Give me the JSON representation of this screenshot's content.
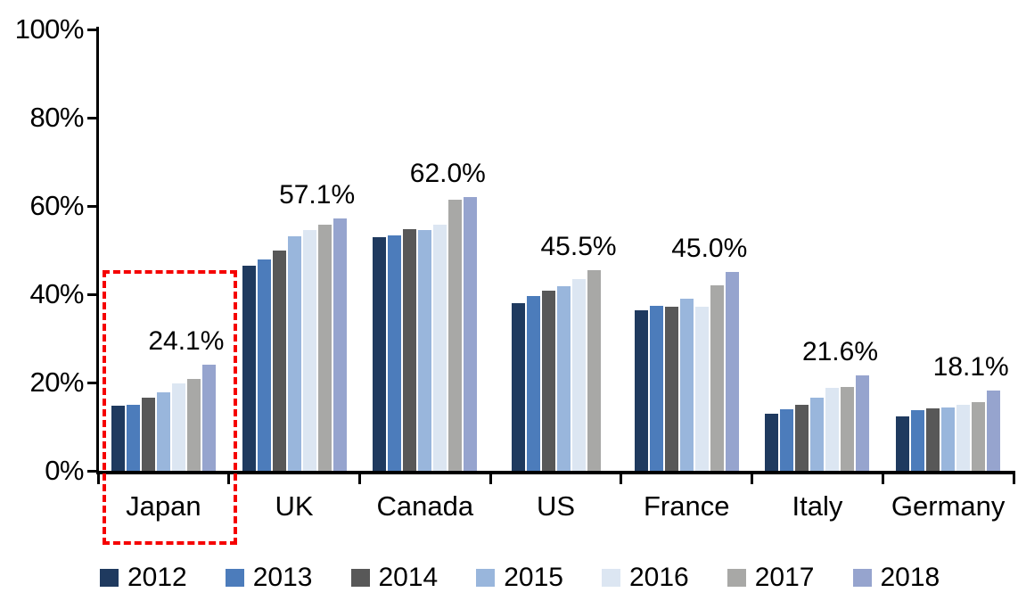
{
  "chart_data": {
    "type": "bar",
    "title": "",
    "xlabel": "",
    "ylabel": "",
    "categories": [
      "Japan",
      "UK",
      "Canada",
      "US",
      "France",
      "Italy",
      "Germany"
    ],
    "series": [
      {
        "name": "2012",
        "color": "#1F3A5F",
        "values": [
          14.8,
          46.4,
          52.9,
          38.0,
          36.4,
          12.9,
          12.3
        ]
      },
      {
        "name": "2013",
        "color": "#4C7CBB",
        "values": [
          15.0,
          47.9,
          53.3,
          39.6,
          37.4,
          13.9,
          13.7
        ]
      },
      {
        "name": "2014",
        "color": "#585858",
        "values": [
          16.5,
          50.0,
          54.7,
          40.8,
          37.2,
          15.0,
          14.1
        ]
      },
      {
        "name": "2015",
        "color": "#99B6DC",
        "values": [
          17.8,
          53.2,
          54.5,
          41.8,
          38.9,
          16.6,
          14.3
        ]
      },
      {
        "name": "2016",
        "color": "#DCE6F2",
        "values": [
          19.8,
          54.6,
          55.8,
          43.4,
          37.2,
          18.8,
          15.0
        ]
      },
      {
        "name": "2017",
        "color": "#A8A8A6",
        "values": [
          20.8,
          55.8,
          61.4,
          45.5,
          42.0,
          19.0,
          15.6
        ]
      },
      {
        "name": "2018",
        "color": "#96A4CE",
        "values": [
          24.1,
          57.1,
          62.0,
          null,
          45.0,
          21.6,
          18.1
        ]
      }
    ],
    "peak_labels": [
      "24.1%",
      "57.1%",
      "62.0%",
      "45.5%",
      "45.0%",
      "21.6%",
      "18.1%"
    ],
    "y_axis": {
      "tick_labels": [
        "0%",
        "20%",
        "40%",
        "60%",
        "80%",
        "100%"
      ],
      "min": 0,
      "max": 100,
      "grid": false
    },
    "legend": {
      "position": "bottom",
      "entries": [
        "2012",
        "2013",
        "2014",
        "2015",
        "2016",
        "2017",
        "2018"
      ]
    },
    "annotation": {
      "type": "dashed-box",
      "target_category": "Japan",
      "color": "#f50000"
    }
  }
}
